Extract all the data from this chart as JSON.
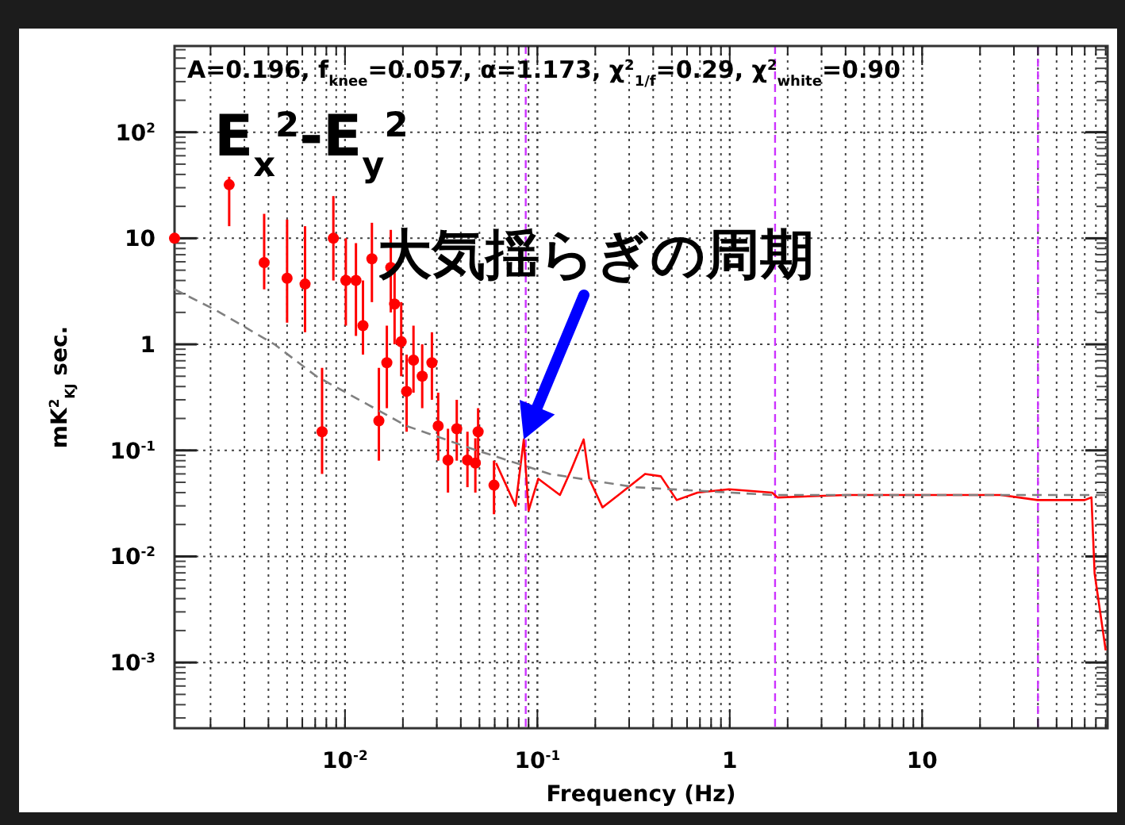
{
  "chart_data": {
    "type": "scatter",
    "title": "A=0.196, f$_{knee}$=0.057, α=1.173, χ$^{2}$$_{1/f}$=0.29, χ$^{2}$$_{white}$=0.90",
    "xlabel": "Frequency (Hz)",
    "ylabel": "mK$^{2}$$_{KJ}$ sec.",
    "log": "xy",
    "grid": true,
    "xlim": [
      0.0013,
      92
    ],
    "ylim": [
      0.00024,
      650
    ],
    "xticks": [
      {
        "value": 0.01,
        "label": "10$^{-2}$"
      },
      {
        "value": 0.1,
        "label": "10$^{-1}$"
      },
      1,
      10
    ],
    "yticks": [
      {
        "value": 0.001,
        "label": "10$^{-3}$"
      },
      {
        "value": 0.01,
        "label": "10$^{-2}$"
      },
      {
        "value": 0.1,
        "label": "10$^{-1}$"
      },
      1,
      10,
      {
        "value": 100,
        "label": "10$^{2}$"
      }
    ],
    "annotations": [
      "E$_{x}$$^{2}$-E$_{y}$$^{2}$",
      {
        "text": "大気揺らぎの周期",
        "x": 0.085,
        "y": 0.127
      }
    ],
    "ref_lines": [
      {
        "axis": "x",
        "value": 0.087,
        "color": "#cc33ff",
        "line_style": "dashed"
      },
      {
        "axis": "x",
        "value": 1.72,
        "color": "#cc33ff",
        "line_style": "dashed"
      },
      {
        "axis": "x",
        "value": 40,
        "color": "#cc33ff",
        "line_style": "dashed"
      }
    ],
    "series": [
      {
        "color": "#ff0000",
        "marker": "circle",
        "x": [
          0.0013,
          0.0025,
          0.0038,
          0.005,
          0.0062,
          0.0076,
          0.0087,
          0.0101,
          0.0114,
          0.0124,
          0.0138,
          0.015,
          0.0165,
          0.0173,
          0.0181,
          0.0196,
          0.0209,
          0.0227,
          0.0252,
          0.0283,
          0.0305,
          0.0343,
          0.0381,
          0.0433,
          0.0476,
          0.0492,
          0.0595
        ],
        "values": [
          10,
          32,
          5.9,
          4.2,
          3.7,
          0.15,
          10,
          4,
          4,
          1.5,
          6.4,
          0.19,
          0.67,
          5.3,
          2.4,
          1.06,
          0.36,
          0.71,
          0.5,
          0.67,
          0.17,
          0.081,
          0.16,
          0.081,
          0.076,
          0.15,
          0.047
        ],
        "errors": [
          null,
          [
            13,
            38
          ],
          [
            3.3,
            17
          ],
          [
            1.6,
            15
          ],
          [
            1.3,
            13
          ],
          [
            0.06,
            0.6
          ],
          [
            4,
            25
          ],
          [
            1.5,
            10
          ],
          [
            1.2,
            9
          ],
          [
            0.8,
            4
          ],
          [
            2.5,
            14
          ],
          [
            0.08,
            0.6
          ],
          [
            0.25,
            1.5
          ],
          [
            2,
            12
          ],
          [
            1,
            5
          ],
          [
            0.5,
            2.5
          ],
          [
            0.15,
            0.8
          ],
          [
            0.35,
            1.5
          ],
          [
            0.25,
            1
          ],
          [
            0.3,
            1.3
          ],
          [
            0.08,
            0.35
          ],
          [
            0.04,
            0.16
          ],
          [
            0.08,
            0.3
          ],
          [
            0.045,
            0.15
          ],
          [
            0.04,
            0.13
          ],
          [
            0.08,
            0.25
          ],
          [
            0.025,
            0.08
          ]
        ]
      },
      {
        "type": "line",
        "color": "#ff0000",
        "line_style": "solid",
        "x": [
          0.061,
          0.077,
          0.085,
          0.09,
          0.101,
          0.131,
          0.149,
          0.174,
          0.186,
          0.218,
          0.264,
          0.363,
          0.438,
          0.53,
          0.68,
          0.99,
          1.66,
          1.77,
          4.05,
          9.2,
          25.6,
          39.8,
          70,
          75.9,
          78.8,
          90
        ],
        "values": [
          0.076,
          0.03,
          0.127,
          0.027,
          0.054,
          0.038,
          0.064,
          0.127,
          0.054,
          0.029,
          0.038,
          0.06,
          0.057,
          0.034,
          0.04,
          0.043,
          0.04,
          0.036,
          0.038,
          0.038,
          0.038,
          0.034,
          0.034,
          0.036,
          0.0069,
          0.0013
        ]
      },
      {
        "type": "line",
        "color": "#808080",
        "line_style": "dashed",
        "x": [
          0.0013,
          0.00213,
          0.0043,
          0.0071,
          0.0209,
          0.0476,
          0.116,
          0.32,
          1.66,
          90
        ],
        "values": [
          3.3,
          2.1,
          1.0,
          0.5,
          0.17,
          0.101,
          0.06,
          0.045,
          0.038,
          0.038
        ]
      }
    ]
  }
}
